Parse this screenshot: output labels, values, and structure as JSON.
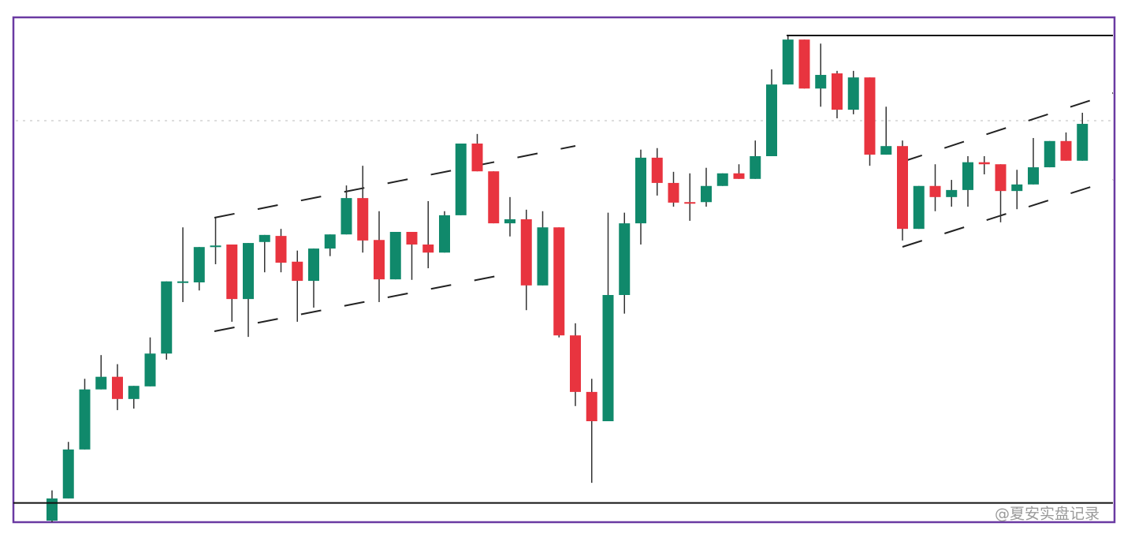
{
  "chart_data": {
    "type": "candlestick",
    "ylim": [
      0,
      100
    ],
    "up_color": "#10896b",
    "down_color": "#e8343f",
    "open": [
      0.3,
      4.7,
      14.4,
      26.3,
      28.8,
      24.4,
      26.9,
      33.4,
      47.5,
      47.5,
      54.5,
      55.0,
      44.2,
      55.5,
      56.7,
      51.6,
      47.8,
      54.2,
      57.0,
      64.2,
      55.9,
      48.1,
      57.5,
      55.0,
      53.4,
      60.8,
      75.0,
      69.5,
      59.2,
      60.0,
      46.9,
      58.4,
      37.0,
      25.8,
      20.0,
      45.0,
      59.2,
      72.2,
      67.2,
      63.4,
      63.4,
      66.6,
      69.1,
      68.0,
      72.5,
      86.7,
      95.6,
      85.9,
      88.9,
      81.7,
      88.1,
      72.8,
      74.5,
      58.1,
      66.6,
      64.4,
      65.8,
      71.3,
      70.9,
      65.6,
      66.9,
      70.3,
      75.5,
      71.6
    ],
    "high": [
      6.3,
      15.9,
      28.4,
      33.1,
      31.3,
      27.0,
      36.6,
      47.7,
      58.4,
      54.5,
      60.3,
      55.0,
      55.3,
      56.9,
      58.1,
      53.8,
      54.2,
      57.0,
      66.7,
      70.6,
      61.6,
      57.5,
      57.5,
      63.6,
      61.6,
      75.0,
      76.9,
      69.5,
      64.4,
      61.9,
      61.6,
      58.4,
      39.4,
      28.4,
      61.3,
      61.3,
      73.8,
      74.1,
      69.4,
      69.1,
      70.2,
      69.1,
      70.9,
      75.6,
      89.7,
      96.4,
      95.6,
      94.8,
      89.4,
      89.4,
      88.1,
      82.3,
      75.6,
      66.6,
      70.9,
      67.8,
      72.5,
      72.5,
      70.9,
      69.8,
      76.1,
      75.5,
      77.2,
      81.1
    ],
    "low": [
      0,
      4.7,
      14.4,
      26.3,
      22.2,
      22.5,
      26.9,
      32.2,
      43.6,
      45.9,
      51.1,
      39.7,
      36.7,
      49.5,
      49.5,
      39.7,
      42.5,
      52.7,
      57.0,
      53.4,
      43.6,
      48.1,
      48.0,
      50.3,
      53.4,
      60.8,
      69.5,
      59.2,
      56.6,
      42.0,
      46.9,
      36.6,
      23.0,
      7.8,
      20.0,
      41.3,
      55.0,
      64.7,
      62.5,
      59.7,
      62.5,
      66.6,
      68.0,
      68.0,
      72.5,
      86.7,
      85.9,
      82.3,
      80.0,
      80.8,
      70.6,
      72.8,
      55.8,
      58.1,
      61.6,
      62.5,
      62.5,
      68.9,
      59.4,
      62.0,
      66.9,
      70.3,
      71.6,
      71.6
    ],
    "close": [
      4.7,
      14.4,
      26.3,
      28.8,
      24.4,
      27.0,
      33.4,
      47.7,
      47.7,
      54.5,
      54.8,
      44.2,
      55.3,
      56.9,
      51.4,
      47.8,
      54.2,
      57.0,
      64.2,
      55.8,
      48.1,
      57.5,
      55.0,
      53.4,
      60.8,
      75.0,
      69.5,
      59.2,
      60.0,
      46.9,
      58.4,
      37.0,
      25.8,
      20.0,
      45.0,
      59.2,
      72.2,
      67.2,
      63.3,
      63.3,
      66.6,
      69.1,
      68.0,
      72.5,
      86.7,
      95.6,
      85.9,
      88.6,
      81.7,
      88.1,
      72.8,
      74.5,
      58.1,
      66.6,
      64.4,
      65.8,
      71.3,
      70.9,
      65.6,
      66.9,
      70.3,
      75.5,
      71.6,
      78.9
    ],
    "levels": [
      96.4,
      3.8
    ],
    "watermark": "@夏安实盘记录"
  }
}
